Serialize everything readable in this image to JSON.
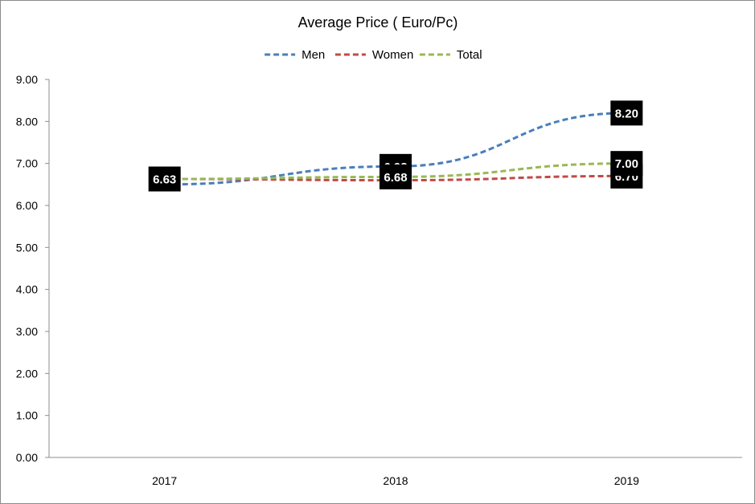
{
  "chart_data": {
    "type": "line",
    "title": "Average Price ( Euro/Pc)",
    "xlabel": "",
    "ylabel": "",
    "categories": [
      "2017",
      "2018",
      "2019"
    ],
    "ylim": [
      0,
      9
    ],
    "yticks": [
      "0.00",
      "1.00",
      "2.00",
      "3.00",
      "4.00",
      "5.00",
      "6.00",
      "7.00",
      "8.00",
      "9.00"
    ],
    "grid": false,
    "legend_position": "top-center",
    "series": [
      {
        "name": "Men",
        "color": "#4a7ebb",
        "values": [
          6.5,
          6.93,
          8.2
        ],
        "labels": [
          "",
          "6.93",
          "8.20"
        ]
      },
      {
        "name": "Women",
        "color": "#be4b48",
        "values": [
          6.63,
          6.6,
          6.7
        ],
        "labels": [
          "",
          "",
          "6.70"
        ]
      },
      {
        "name": "Total",
        "color": "#98b954",
        "values": [
          6.63,
          6.68,
          7.0
        ],
        "labels": [
          "6.63",
          "6.68",
          "7.00"
        ]
      }
    ]
  }
}
